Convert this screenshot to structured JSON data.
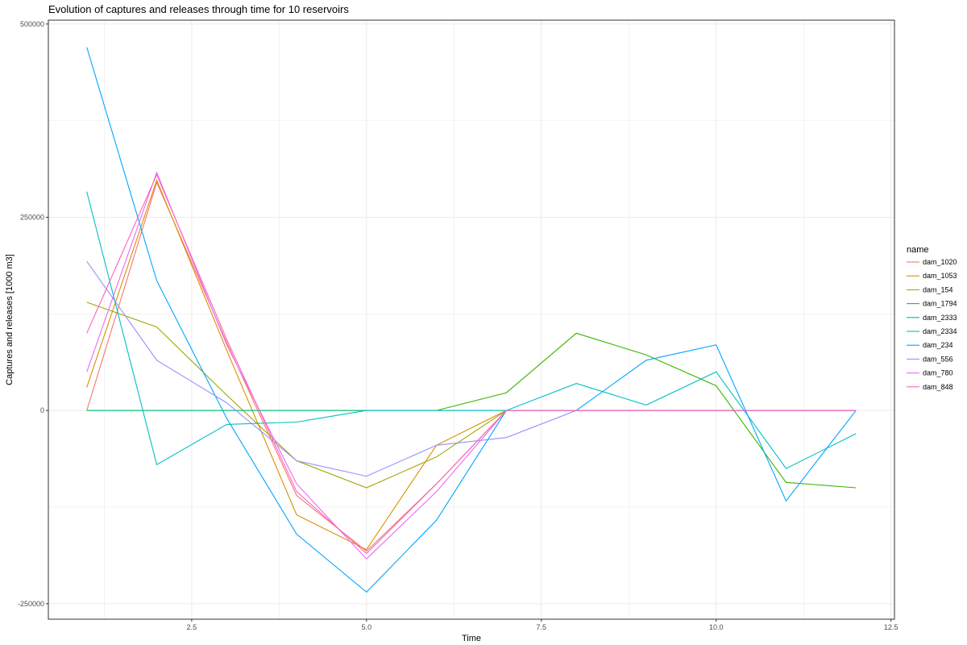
{
  "chart_data": {
    "type": "line",
    "title": "Evolution of captures and releases through time for 10 reservoirs",
    "xlabel": "Time",
    "ylabel": "Captures and releases [1000 m3]",
    "xlim": [
      0.45,
      12.55
    ],
    "ylim": [
      -270000,
      505000
    ],
    "x_ticks": [
      2.5,
      5.0,
      7.5,
      10.0,
      12.5
    ],
    "x_tick_labels": [
      "2.5",
      "5.0",
      "7.5",
      "10.0",
      "12.5"
    ],
    "y_ticks": [
      -250000,
      0,
      250000,
      500000
    ],
    "y_tick_labels": [
      "-250000",
      "0",
      "250000",
      "500000"
    ],
    "grid": true,
    "legend": {
      "title": "name",
      "position": "right"
    },
    "x": [
      1,
      2,
      3,
      4,
      5,
      6,
      7,
      8,
      9,
      10,
      11,
      12
    ],
    "series": [
      {
        "name": "dam_1020",
        "color": "#F8766D",
        "values": [
          0,
          295000,
          88000,
          -110000,
          -182000,
          -95000,
          0,
          0,
          0,
          0,
          0,
          0
        ]
      },
      {
        "name": "dam_1053",
        "color": "#D89000",
        "values": [
          30000,
          298000,
          78000,
          -135000,
          -180000,
          -45000,
          0,
          0,
          0,
          0,
          0,
          0
        ]
      },
      {
        "name": "dam_154",
        "color": "#A3A500",
        "values": [
          140000,
          108000,
          20000,
          -65000,
          -100000,
          -60000,
          0,
          0,
          0,
          0,
          0,
          0
        ]
      },
      {
        "name": "dam_1794",
        "color": "#39B600",
        "values": [
          0,
          0,
          0,
          0,
          0,
          0,
          23000,
          100000,
          72000,
          32000,
          -93000,
          -100000
        ]
      },
      {
        "name": "dam_2333",
        "color": "#00BF7D",
        "values": [
          0,
          0,
          0,
          0,
          0,
          0,
          0,
          0,
          0,
          0,
          0,
          0
        ]
      },
      {
        "name": "dam_2334",
        "color": "#00BFC4",
        "values": [
          283000,
          -70000,
          -18000,
          -15000,
          0,
          0,
          0,
          35000,
          7000,
          50000,
          -75000,
          -30000
        ]
      },
      {
        "name": "dam_234",
        "color": "#00A5FF",
        "values": [
          470000,
          168000,
          -10000,
          -160000,
          -235000,
          -142000,
          0,
          0,
          65000,
          85000,
          -117000,
          0
        ]
      },
      {
        "name": "dam_556",
        "color": "#9590FF",
        "values": [
          193000,
          65000,
          10000,
          -65000,
          -85000,
          -45000,
          -35000,
          0,
          0,
          0,
          0,
          0
        ]
      },
      {
        "name": "dam_780",
        "color": "#E76BF3",
        "values": [
          50000,
          308000,
          85000,
          -95000,
          -192000,
          -105000,
          0,
          0,
          0,
          0,
          0,
          0
        ]
      },
      {
        "name": "dam_848",
        "color": "#FF62BC",
        "values": [
          100000,
          305000,
          92000,
          -105000,
          -185000,
          -95000,
          0,
          0,
          0,
          0,
          0,
          0
        ]
      }
    ]
  }
}
